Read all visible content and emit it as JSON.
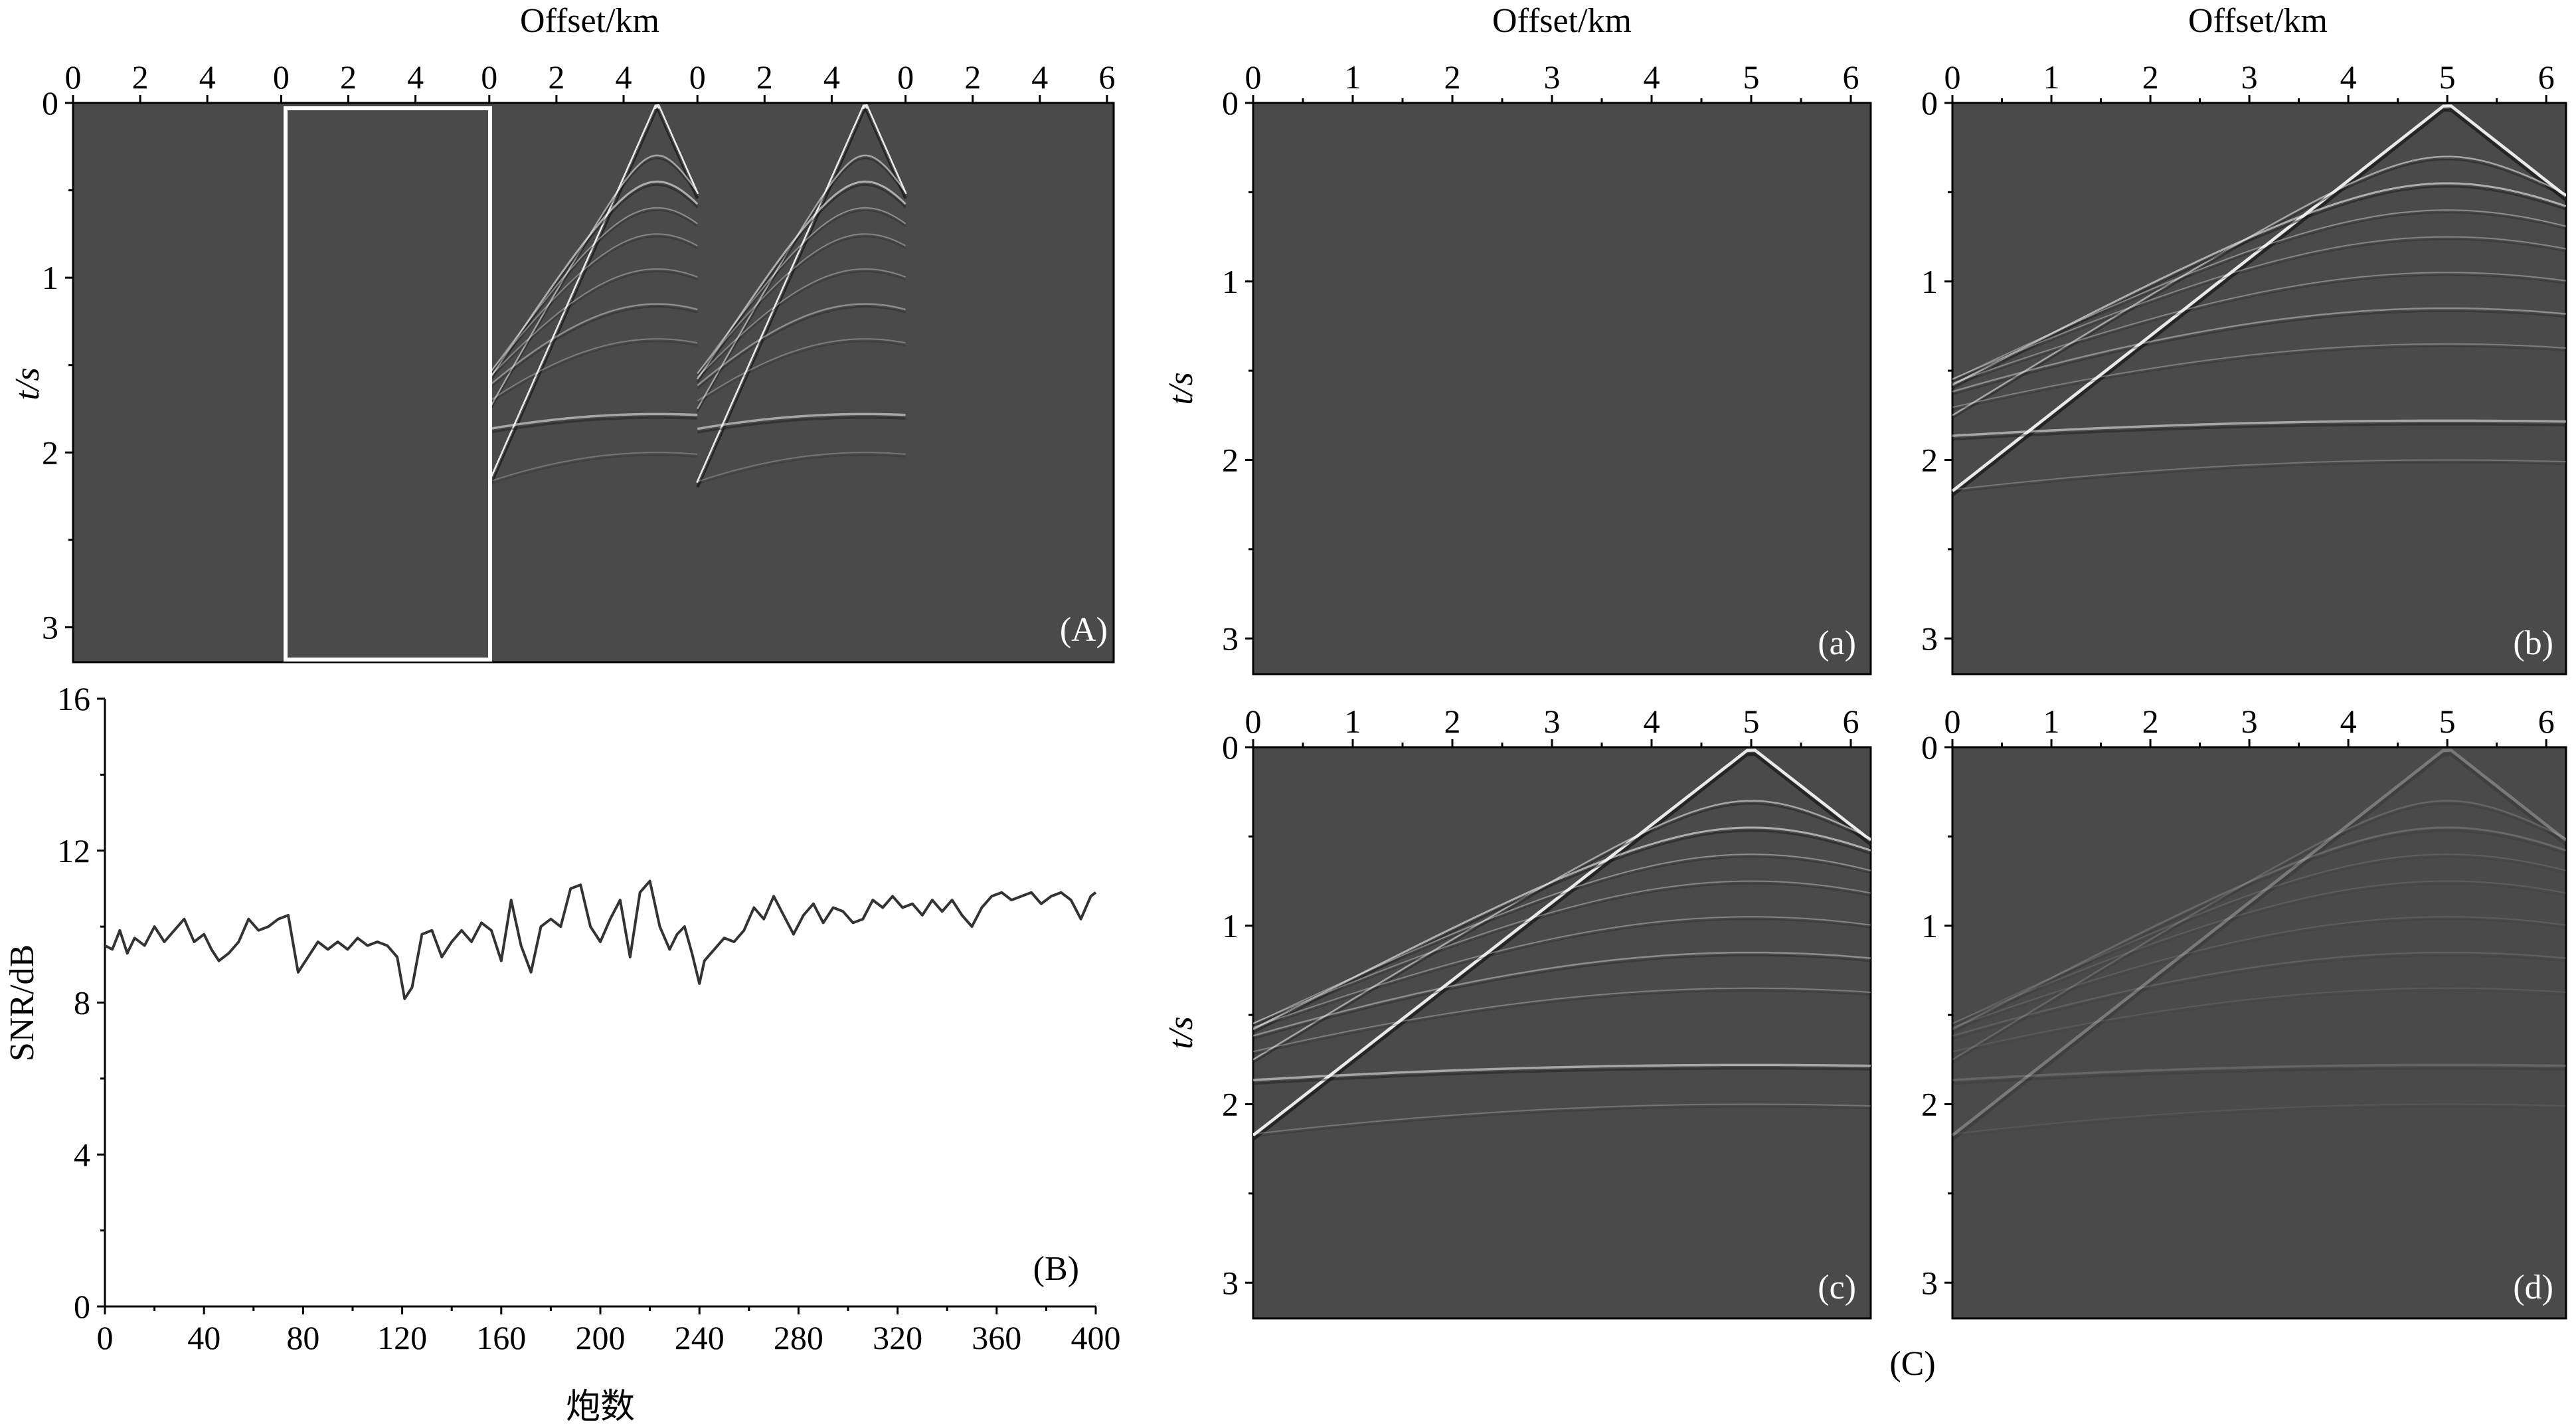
{
  "figure_label": "(C)",
  "chart_data": [
    {
      "id": "A",
      "type": "heatmap",
      "panel_label": "(A)",
      "xlabel": "Offset/km",
      "ylabel": "t/s",
      "x_tick_labels": [
        "0",
        "2",
        "4",
        "0",
        "2",
        "4",
        "0",
        "2",
        "4",
        "0",
        "2",
        "4",
        "0",
        "2",
        "4",
        "6"
      ],
      "y_ticks": [
        0,
        1,
        2,
        3
      ],
      "y_tick_labels": [
        "0",
        "1",
        "2",
        "3"
      ],
      "ylim": [
        0,
        3.2
      ],
      "gathers": [
        {
          "x_range_km": [
            0,
            6.2
          ],
          "content": "blank"
        },
        {
          "x_range_km": [
            0,
            6.2
          ],
          "content": "blank",
          "highlighted_box": true
        },
        {
          "x_range_km": [
            0,
            6.2
          ],
          "content": "shot-gather",
          "apex_offset_km": 5,
          "apex_time_s": 0
        },
        {
          "x_range_km": [
            0,
            6.2
          ],
          "content": "shot-gather",
          "apex_offset_km": 5,
          "apex_time_s": 0
        },
        {
          "x_range_km": [
            0,
            6.2
          ],
          "content": "blank"
        }
      ],
      "colors": {
        "background": "#4a4a4a",
        "box": "#ffffff"
      }
    },
    {
      "id": "B",
      "type": "line",
      "panel_label": "(B)",
      "xlabel": "炮数",
      "ylabel": "SNR/dB",
      "xlim": [
        0,
        400
      ],
      "ylim": [
        0,
        16
      ],
      "x_ticks": [
        0,
        40,
        80,
        120,
        160,
        200,
        240,
        280,
        320,
        360,
        400
      ],
      "y_ticks": [
        0,
        4,
        8,
        12,
        16
      ],
      "x_tick_labels": [
        "0",
        "40",
        "80",
        "120",
        "160",
        "200",
        "240",
        "280",
        "320",
        "360",
        "400"
      ],
      "y_tick_labels": [
        "0",
        "4",
        "8",
        "12",
        "16"
      ],
      "series": [
        {
          "x": [
            0,
            3,
            6,
            9,
            12,
            16,
            20,
            24,
            28,
            32,
            36,
            40,
            43,
            46,
            50,
            54,
            58,
            62,
            66,
            70,
            74,
            78,
            82,
            86,
            90,
            94,
            98,
            102,
            106,
            110,
            114,
            118,
            121,
            124,
            128,
            132,
            136,
            140,
            144,
            148,
            152,
            156,
            160,
            164,
            168,
            172,
            176,
            180,
            184,
            188,
            192,
            196,
            200,
            204,
            208,
            212,
            216,
            220,
            224,
            228,
            231,
            234,
            237,
            240,
            242,
            246,
            250,
            254,
            258,
            262,
            266,
            270,
            274,
            278,
            282,
            286,
            290,
            294,
            298,
            302,
            306,
            310,
            314,
            318,
            322,
            326,
            330,
            334,
            338,
            342,
            346,
            350,
            354,
            358,
            362,
            366,
            370,
            374,
            378,
            382,
            386,
            390,
            394,
            398,
            400
          ],
          "y": [
            9.5,
            9.4,
            9.9,
            9.3,
            9.7,
            9.5,
            10.0,
            9.6,
            9.9,
            10.2,
            9.6,
            9.8,
            9.4,
            9.1,
            9.3,
            9.6,
            10.2,
            9.9,
            10.0,
            10.2,
            10.3,
            8.8,
            9.2,
            9.6,
            9.4,
            9.6,
            9.4,
            9.7,
            9.5,
            9.6,
            9.5,
            9.2,
            8.1,
            8.4,
            9.8,
            9.9,
            9.2,
            9.6,
            9.9,
            9.6,
            10.1,
            9.9,
            9.1,
            10.7,
            9.5,
            8.8,
            10.0,
            10.2,
            10.0,
            11.0,
            11.1,
            10.0,
            9.6,
            10.2,
            10.7,
            9.2,
            10.9,
            11.2,
            10.0,
            9.4,
            9.8,
            10.0,
            9.3,
            8.5,
            9.1,
            9.4,
            9.7,
            9.6,
            9.9,
            10.5,
            10.2,
            10.8,
            10.3,
            9.8,
            10.3,
            10.6,
            10.1,
            10.5,
            10.4,
            10.1,
            10.2,
            10.7,
            10.5,
            10.8,
            10.5,
            10.6,
            10.3,
            10.7,
            10.4,
            10.7,
            10.3,
            10.0,
            10.5,
            10.8,
            10.9,
            10.7,
            10.8,
            10.9,
            10.6,
            10.8,
            10.9,
            10.7,
            10.2,
            10.8,
            10.9
          ]
        }
      ],
      "colors": {
        "line": "#333333"
      }
    },
    {
      "id": "a",
      "type": "heatmap",
      "panel_label": "(a)",
      "xlabel": "Offset/km",
      "ylabel": "t/s",
      "x_ticks": [
        0,
        1,
        2,
        3,
        4,
        5,
        6
      ],
      "x_tick_labels": [
        "0",
        "1",
        "2",
        "3",
        "4",
        "5",
        "6"
      ],
      "y_ticks": [
        0,
        1,
        2,
        3
      ],
      "y_tick_labels": [
        "0",
        "1",
        "2",
        "3"
      ],
      "xlim": [
        0,
        6.2
      ],
      "ylim": [
        0,
        3.2
      ],
      "content": "blank",
      "colors": {
        "background": "#4a4a4a"
      }
    },
    {
      "id": "b",
      "type": "heatmap",
      "panel_label": "(b)",
      "xlabel": "Offset/km",
      "x_ticks": [
        0,
        1,
        2,
        3,
        4,
        5,
        6
      ],
      "x_tick_labels": [
        "0",
        "1",
        "2",
        "3",
        "4",
        "5",
        "6"
      ],
      "y_ticks": [
        0,
        1,
        2,
        3
      ],
      "y_tick_labels": [
        "0",
        "1",
        "2",
        "3"
      ],
      "xlim": [
        0,
        6.2
      ],
      "ylim": [
        0,
        3.2
      ],
      "content": "shot-gather",
      "apex_offset_km": 5,
      "amplitude": 1.0,
      "colors": {
        "background": "#4a4a4a"
      }
    },
    {
      "id": "c",
      "type": "heatmap",
      "panel_label": "(c)",
      "ylabel": "t/s",
      "x_ticks": [
        0,
        1,
        2,
        3,
        4,
        5,
        6
      ],
      "x_tick_labels": [
        "0",
        "1",
        "2",
        "3",
        "4",
        "5",
        "6"
      ],
      "y_ticks": [
        0,
        1,
        2,
        3
      ],
      "y_tick_labels": [
        "0",
        "1",
        "2",
        "3"
      ],
      "xlim": [
        0,
        6.2
      ],
      "ylim": [
        0,
        3.2
      ],
      "content": "shot-gather",
      "apex_offset_km": 5,
      "amplitude": 1.0,
      "colors": {
        "background": "#4a4a4a"
      }
    },
    {
      "id": "d",
      "type": "heatmap",
      "panel_label": "(d)",
      "x_ticks": [
        0,
        1,
        2,
        3,
        4,
        5,
        6
      ],
      "x_tick_labels": [
        "0",
        "1",
        "2",
        "3",
        "4",
        "5",
        "6"
      ],
      "y_ticks": [
        0,
        1,
        2,
        3
      ],
      "y_tick_labels": [
        "0",
        "1",
        "2",
        "3"
      ],
      "xlim": [
        0,
        6.2
      ],
      "ylim": [
        0,
        3.2
      ],
      "content": "shot-gather",
      "apex_offset_km": 5,
      "amplitude": 0.3,
      "colors": {
        "background": "#4a4a4a"
      }
    }
  ]
}
